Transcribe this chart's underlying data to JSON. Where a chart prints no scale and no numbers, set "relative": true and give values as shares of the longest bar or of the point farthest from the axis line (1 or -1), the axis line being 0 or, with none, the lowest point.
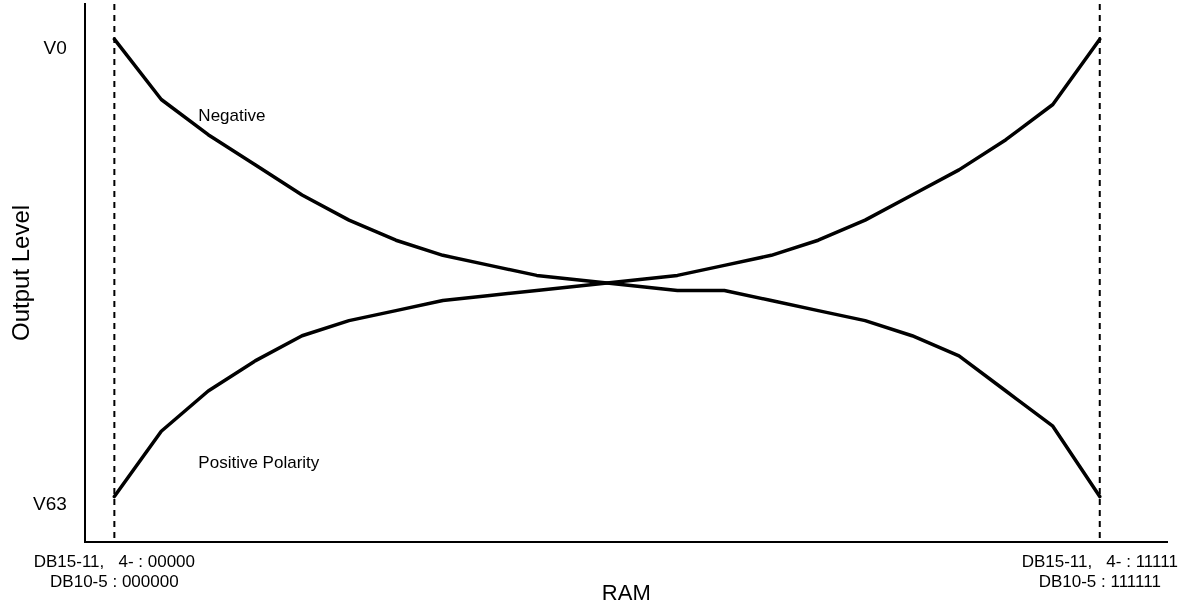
{
  "chart_data": {
    "type": "line",
    "xlabel": "RAM",
    "ylabel": "Output Level",
    "relative": true,
    "categories": [
      "DB15-11,   4- : 00000\nDB10-5 : 000000",
      null,
      null,
      null,
      null,
      null,
      null,
      null,
      null,
      null,
      null,
      null,
      null,
      null,
      null,
      null,
      null,
      null,
      null,
      null,
      null,
      "DB15-11,   4- : 11111\nDB10-5 : 111111"
    ],
    "annotations": [
      "V0",
      "V63"
    ],
    "legend": false,
    "line_style": "solid",
    "ref_lines": [
      {
        "axis": "x",
        "value": "DB15-11,   4- : 00000\nDB10-5 : 000000",
        "color": "#000000",
        "line_style": "dashed"
      },
      {
        "axis": "x",
        "value": "DB15-11,   4- : 11111\nDB10-5 : 111111",
        "color": "#000000",
        "line_style": "dashed"
      }
    ],
    "series": [
      {
        "name": "Negative",
        "color": "#000000",
        "values": [
          1,
          0.88,
          0.81,
          0.75,
          0.69,
          0.64,
          0.6,
          0.57,
          0.55,
          0.53,
          0.52,
          0.51,
          0.5,
          0.5,
          0.48,
          0.46,
          0.44,
          0.41,
          0.37,
          0.3,
          0.23,
          0.09
        ]
      },
      {
        "name": "Positive Polarity",
        "color": "#000000",
        "values": [
          0.09,
          0.22,
          0.3,
          0.36,
          0.41,
          0.44,
          0.46,
          0.48,
          0.49,
          0.5,
          0.51,
          0.52,
          0.53,
          0.55,
          0.57,
          0.6,
          0.64,
          0.69,
          0.74,
          0.8,
          0.87,
          1
        ]
      }
    ]
  }
}
